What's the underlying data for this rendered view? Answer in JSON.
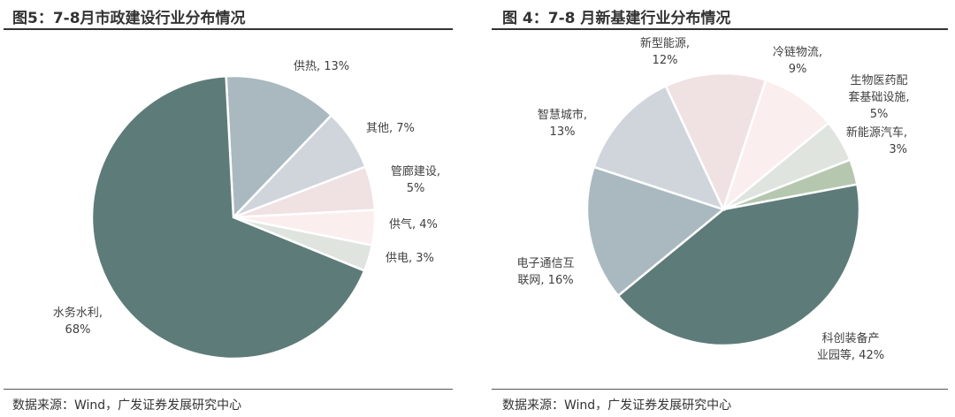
{
  "left": {
    "title": "图5：7-8月市政建设行业分布情况",
    "source": "数据来源：Wind，广发证券发展研究中心"
  },
  "right": {
    "title": "图 4：7-8 月新基建行业分布情况",
    "source": "数据来源：Wind，广发证券发展研究中心"
  },
  "chart_data": [
    {
      "type": "pie",
      "title": "7-8月市政建设行业分布情况",
      "start_angle_deg": -3,
      "slices": [
        {
          "label": "供热",
          "value": 13,
          "text": "供热, 13%",
          "color": "#a9b9bf"
        },
        {
          "label": "其他",
          "value": 7,
          "text": "其他, 7%",
          "color": "#d0d5dc"
        },
        {
          "label": "管廊建设",
          "value": 5,
          "text": "管廊建设,",
          "text2": "5%",
          "color": "#f0e1e3"
        },
        {
          "label": "供气",
          "value": 4,
          "text": "供气, 4%",
          "color": "#fbeeee"
        },
        {
          "label": "供电",
          "value": 3,
          "text": "供电, 3%",
          "color": "#dfe4de"
        },
        {
          "label": "水务水利",
          "value": 68,
          "text": "水务水利,",
          "text2": "68%",
          "color": "#5d7b79"
        }
      ]
    },
    {
      "type": "pie",
      "title": "7-8月新基建行业分布情况",
      "start_angle_deg": -25,
      "slices": [
        {
          "label": "新型能源",
          "value": 12,
          "text": "新型能源,",
          "text2": "12%",
          "color": "#f0e1e3"
        },
        {
          "label": "冷链物流",
          "value": 9,
          "text": "冷链物流,",
          "text2": "9%",
          "color": "#fbeeee"
        },
        {
          "label": "生物医药配套基础设施",
          "value": 5,
          "text": "生物医药配",
          "text2": "套基础设施,",
          "text3": "5%",
          "color": "#dfe4de"
        },
        {
          "label": "新能源汽车",
          "value": 3,
          "text": "新能源汽车,",
          "text2": "3%",
          "color": "#b6c7b0"
        },
        {
          "label": "科创装备产业园等",
          "value": 42,
          "text": "科创装备产",
          "text2": "业园等, 42%",
          "color": "#5d7b79"
        },
        {
          "label": "电子通信互联网",
          "value": 16,
          "text": "电子通信互",
          "text2": "联网, 16%",
          "color": "#a9b9bf"
        },
        {
          "label": "智慧城市",
          "value": 13,
          "text": "智慧城市,",
          "text2": "13%",
          "color": "#d0d5dc"
        }
      ]
    }
  ]
}
